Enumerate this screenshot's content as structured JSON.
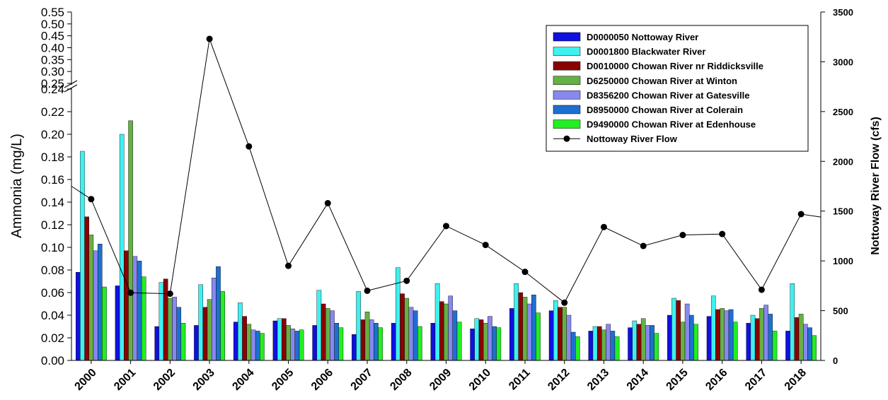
{
  "chart_data": {
    "type": "bar",
    "categories": [
      "2000",
      "2001",
      "2002",
      "2003",
      "2004",
      "2005",
      "2006",
      "2007",
      "2008",
      "2009",
      "2010",
      "2011",
      "2012",
      "2013",
      "2014",
      "2015",
      "2016",
      "2017",
      "2018"
    ],
    "ylabel": "Ammonia (mg/L)",
    "y2label": "Nottoway River Flow (cfs)",
    "y_axis_break": {
      "lower_range": [
        0,
        0.24
      ],
      "upper_range": [
        0.25,
        0.55
      ]
    },
    "y_ticks_lower": [
      "0.00",
      "0.02",
      "0.04",
      "0.06",
      "0.08",
      "0.10",
      "0.12",
      "0.14",
      "0.16",
      "0.18",
      "0.20",
      "0.22",
      "0.24"
    ],
    "y_ticks_upper": [
      "0.25",
      "0.30",
      "0.35",
      "0.40",
      "0.45",
      "0.50",
      "0.55"
    ],
    "y2_ticks": [
      "0",
      "500",
      "1000",
      "1500",
      "2000",
      "2500",
      "3000",
      "3500"
    ],
    "y2lim": [
      0,
      3500
    ],
    "legend_position": "top-right",
    "series": [
      {
        "name": "D0000050 Nottoway River",
        "color": "#1010e0",
        "values": [
          0.078,
          0.066,
          0.03,
          0.031,
          0.034,
          0.035,
          0.031,
          0.023,
          0.033,
          0.033,
          0.028,
          0.046,
          0.044,
          0.026,
          0.029,
          0.04,
          0.039,
          0.033,
          0.026
        ]
      },
      {
        "name": "D0001800 Blackwater River",
        "color": "#3ff0f0",
        "values": [
          0.185,
          0.2,
          0.069,
          0.067,
          0.051,
          0.037,
          0.062,
          0.061,
          0.082,
          0.068,
          0.037,
          0.068,
          0.053,
          0.03,
          0.035,
          0.055,
          0.057,
          0.04,
          0.068
        ]
      },
      {
        "name": "D0010000 Chowan River nr Riddicksville",
        "color": "#8b0000",
        "values": [
          0.127,
          0.097,
          0.072,
          0.047,
          0.039,
          0.037,
          0.05,
          0.036,
          0.059,
          0.052,
          0.036,
          0.06,
          0.047,
          0.03,
          0.032,
          0.053,
          0.045,
          0.037,
          0.038
        ]
      },
      {
        "name": "D6250000 Chowan River at Winton",
        "color": "#66b044",
        "values": [
          0.111,
          0.212,
          0.055,
          0.054,
          0.032,
          0.031,
          0.046,
          0.043,
          0.055,
          0.05,
          0.033,
          0.056,
          0.047,
          0.027,
          0.037,
          0.034,
          0.046,
          0.046,
          0.041
        ]
      },
      {
        "name": "D8356200 Chowan River at Gatesville",
        "color": "#8888ee",
        "values": [
          0.097,
          0.092,
          0.056,
          0.073,
          0.027,
          0.028,
          0.044,
          0.036,
          0.047,
          0.057,
          0.039,
          0.05,
          0.04,
          0.032,
          0.031,
          0.05,
          0.044,
          0.049,
          0.032
        ]
      },
      {
        "name": "D8950000 Chowan River at Colerain",
        "color": "#1e70d0",
        "values": [
          0.103,
          0.088,
          0.047,
          0.083,
          0.026,
          0.026,
          0.033,
          0.033,
          0.044,
          0.044,
          0.03,
          0.058,
          0.025,
          0.026,
          0.031,
          0.04,
          0.045,
          0.041,
          0.029
        ]
      },
      {
        "name": "D9490000 Chowan River at Edenhouse",
        "color": "#22ee22",
        "values": [
          0.065,
          0.074,
          0.033,
          0.061,
          0.024,
          0.027,
          0.029,
          0.029,
          0.03,
          0.034,
          0.029,
          0.042,
          0.021,
          0.021,
          0.024,
          0.032,
          0.034,
          0.026,
          0.022
        ]
      }
    ],
    "line_series": {
      "name": "Nottoway River Flow",
      "axis": "right",
      "color": "#000000",
      "x": [
        "2000",
        "2001",
        "2002",
        "2003",
        "2004",
        "2005",
        "2006",
        "2007",
        "2008",
        "2009",
        "2010",
        "2011",
        "2012",
        "2013",
        "2014",
        "2015",
        "2016",
        "2017",
        "2018"
      ],
      "values": [
        1620,
        680,
        670,
        3230,
        2150,
        950,
        1580,
        700,
        800,
        1350,
        1160,
        890,
        580,
        1340,
        1150,
        1260,
        1270,
        710,
        1470
      ],
      "extends_to_axes": {
        "left_y2": 1750,
        "right_y2": 1440
      }
    }
  }
}
